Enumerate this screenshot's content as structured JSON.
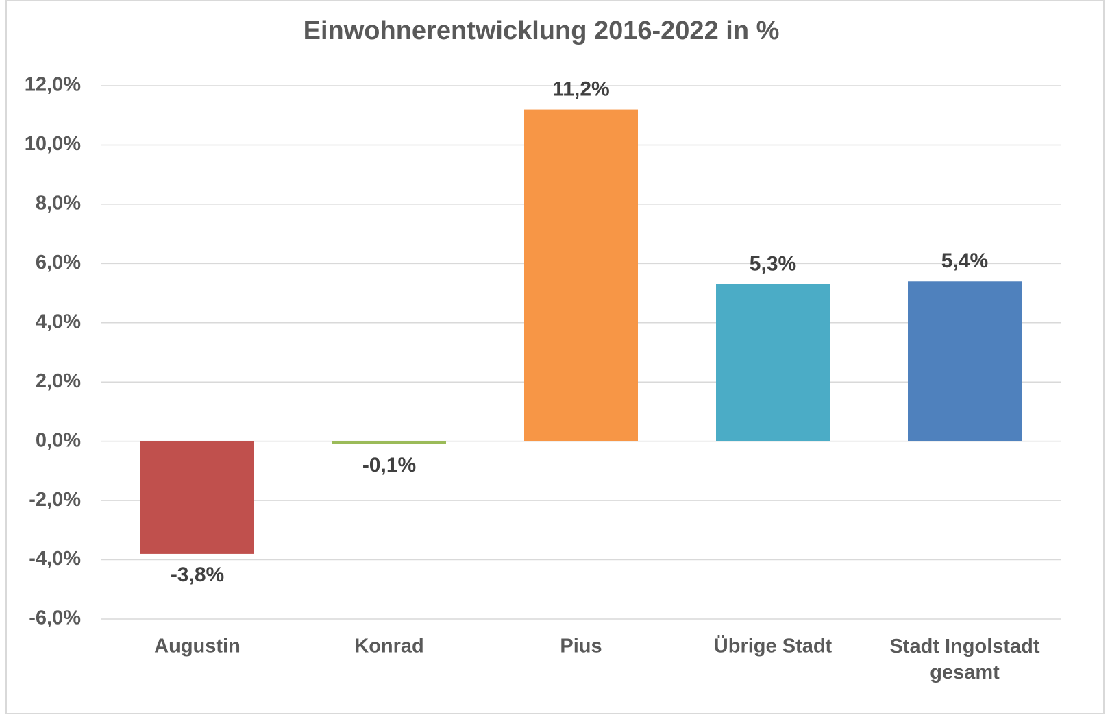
{
  "chart_data": {
    "type": "bar",
    "title": "Einwohnerentwicklung 2016-2022 in %",
    "categories": [
      "Augustin",
      "Konrad",
      "Pius",
      "Übrige Stadt",
      "Stadt Ingolstadt gesamt"
    ],
    "values": [
      -3.8,
      -0.1,
      11.2,
      5.3,
      5.4
    ],
    "value_labels": [
      "-3,8%",
      "-0,1%",
      "11,2%",
      "5,3%",
      "5,4%"
    ],
    "colors": [
      "#c0504d",
      "#9bbb59",
      "#f79646",
      "#4bacc6",
      "#4f81bd"
    ],
    "ylim": [
      -6,
      12
    ],
    "yticks": [
      {
        "value": -6,
        "label": "-6,0%"
      },
      {
        "value": -4,
        "label": "-4,0%"
      },
      {
        "value": -2,
        "label": "-2,0%"
      },
      {
        "value": 0,
        "label": "0,0%"
      },
      {
        "value": 2,
        "label": "2,0%"
      },
      {
        "value": 4,
        "label": "4,0%"
      },
      {
        "value": 6,
        "label": "6,0%"
      },
      {
        "value": 8,
        "label": "8,0%"
      },
      {
        "value": 10,
        "label": "10,0%"
      },
      {
        "value": 12,
        "label": "12,0%"
      }
    ],
    "grid": true
  }
}
